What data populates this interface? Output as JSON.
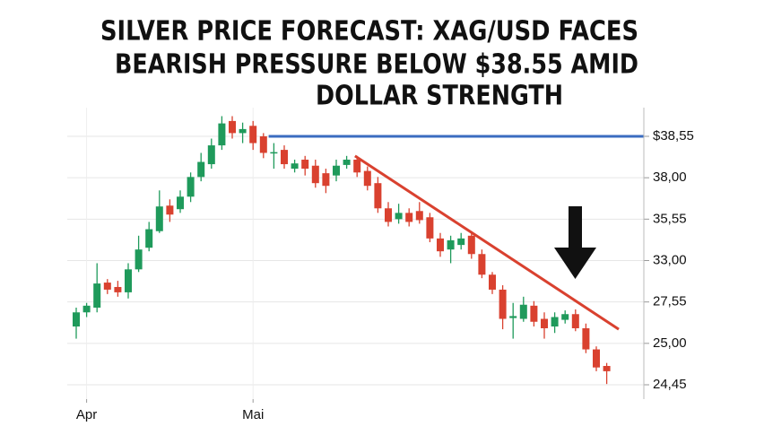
{
  "chart_data": {
    "type": "candlestick",
    "title": [
      "SILVER PRICE FORECAST: XAG/USD FACES",
      "BEARISH PRESSURE BELOW $38.55 AMID",
      "DOLLAR STRENGTH"
    ],
    "categories": [
      null,
      "Apr",
      null,
      null,
      null,
      null,
      null,
      null,
      null,
      null,
      null,
      null,
      null,
      null,
      null,
      null,
      null,
      "Mai",
      null,
      null,
      null,
      null,
      null,
      null,
      null,
      null,
      null,
      null,
      null,
      null,
      null,
      null,
      null,
      null,
      null,
      null,
      null,
      null,
      null,
      null,
      null,
      null,
      null,
      null,
      null,
      null,
      null,
      null,
      null,
      null,
      null,
      null
    ],
    "open": [
      26.04,
      26.91,
      27.2,
      30.1,
      29.52,
      28.82,
      31.84,
      33.79,
      34.81,
      36.35,
      36.14,
      36.88,
      38.01,
      38.18,
      38.43,
      38.74,
      38.59,
      38.68,
      38.55,
      38.33,
      38.37,
      38.12,
      38.24,
      38.16,
      38.06,
      38.03,
      38.17,
      38.24,
      38.09,
      37.68,
      36.19,
      35.55,
      35.92,
      36.03,
      35.66,
      34.36,
      33.68,
      33.96,
      34.53,
      33.4,
      31.14,
      29.17,
      26.56,
      26.51,
      27.32,
      26.51,
      26.04,
      26.45,
      26.8,
      25.93,
      24.92,
      24.7
    ],
    "high": [
      27.2,
      27.49,
      32.65,
      30.56,
      30.33,
      32.65,
      34.53,
      35.38,
      37.25,
      36.72,
      37.25,
      38.07,
      38.33,
      38.52,
      38.8,
      38.8,
      38.72,
      38.74,
      38.59,
      38.46,
      38.43,
      38.24,
      38.29,
      38.24,
      38.12,
      38.24,
      38.29,
      38.29,
      38.15,
      38.01,
      36.56,
      36.46,
      36.19,
      36.56,
      35.92,
      34.7,
      34.53,
      34.7,
      34.81,
      33.68,
      31.49,
      29.75,
      27.49,
      28.24,
      27.66,
      26.91,
      26.91,
      27.03,
      27.09,
      26.22,
      24.96,
      24.74
    ],
    "low": [
      25.29,
      26.62,
      26.91,
      28.59,
      28.24,
      28.01,
      31.49,
      33.57,
      34.7,
      35.38,
      35.92,
      36.56,
      37.79,
      38.12,
      38.37,
      38.52,
      38.46,
      38.37,
      38.26,
      38.12,
      38.12,
      38.07,
      38.03,
      37.41,
      37.09,
      37.79,
      38.12,
      38.01,
      37.25,
      35.92,
      35.1,
      35.27,
      35.1,
      35.27,
      34.13,
      33.23,
      32.65,
      33.68,
      33.11,
      30.68,
      28.59,
      25.87,
      25.29,
      26.33,
      26.04,
      25.29,
      25.64,
      26.22,
      25.75,
      24.87,
      24.63,
      24.46
    ],
    "close": [
      26.91,
      27.32,
      29.98,
      29.17,
      28.82,
      31.84,
      33.68,
      34.93,
      36.3,
      35.82,
      36.88,
      38.01,
      38.21,
      38.43,
      38.71,
      38.59,
      38.64,
      38.46,
      38.33,
      38.34,
      38.18,
      38.19,
      38.12,
      37.68,
      37.52,
      38.16,
      38.24,
      38.07,
      37.52,
      36.19,
      35.38,
      35.92,
      35.38,
      35.49,
      34.36,
      33.57,
      34.25,
      34.36,
      33.4,
      31.14,
      29.17,
      26.51,
      26.68,
      27.38,
      26.33,
      25.93,
      26.62,
      26.8,
      25.93,
      24.92,
      24.68,
      24.63
    ],
    "up_color": "#1f9a5b",
    "down_color": "#d9412f",
    "ylim": [
      24.26,
      38.85
    ],
    "yticks": [
      {
        "value": 24.45,
        "label": "24,45"
      },
      {
        "value": 25,
        "label": "25,00"
      },
      {
        "value": 27.55,
        "label": "27,55"
      },
      {
        "value": 33,
        "label": "33,00"
      },
      {
        "value": 35.55,
        "label": "35,55"
      },
      {
        "value": 38,
        "label": "38,00"
      },
      {
        "value": 38.55,
        "label": "$38,55"
      }
    ],
    "grid": true,
    "resistance": {
      "value": 38.55,
      "color": "#3b6cc0"
    },
    "trendline": {
      "values": [
        38.29,
        25.87
      ],
      "color": "#d9412f"
    }
  }
}
